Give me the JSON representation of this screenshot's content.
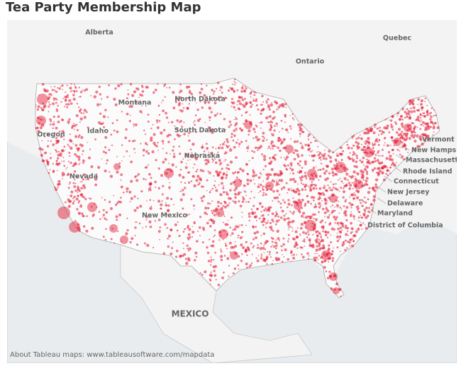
{
  "title": "Tea Party Membership Map",
  "map": {
    "labels": [
      "Alberta",
      "Quebec",
      "Ontario",
      "Montana",
      "North Dakota",
      "South Dakota",
      "Idaho",
      "Oregon",
      "Nevada",
      "Nebraska",
      "New Mexico",
      "MEXICO",
      "Vermont",
      "New Hampshire",
      "Massachusetts",
      "Rhode Island",
      "Connecticut",
      "New Jersey",
      "Delaware",
      "Maryland",
      "District of Columbia"
    ]
  },
  "footer": "About Tableau maps: www.tableausoftware.com/mapdata"
}
